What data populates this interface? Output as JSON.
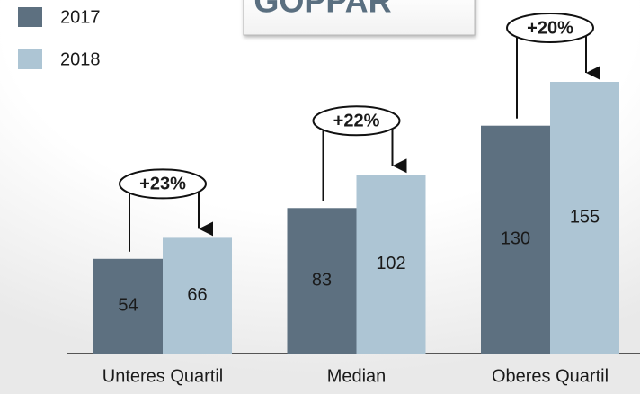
{
  "chart_data": {
    "type": "bar",
    "title": "GOPPAR",
    "categories": [
      "Unteres Quartil",
      "Median",
      "Oberes Quartil"
    ],
    "series": [
      {
        "name": "2017",
        "color": "#5d7080",
        "values": [
          54,
          83,
          130
        ]
      },
      {
        "name": "2018",
        "color": "#adc5d4",
        "values": [
          66,
          102,
          155
        ]
      }
    ],
    "annotations": [
      "+23%",
      "+22%",
      "+20%"
    ],
    "legend": "top-left"
  }
}
